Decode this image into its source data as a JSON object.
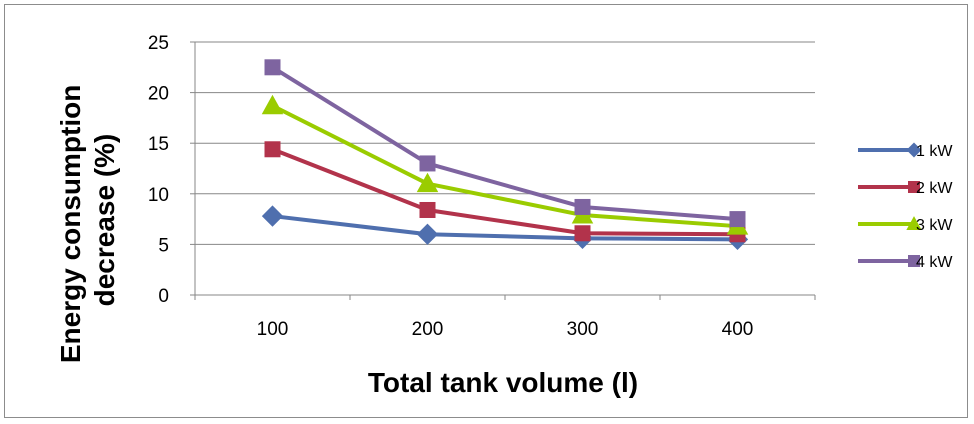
{
  "chart_data": {
    "type": "line",
    "title": "",
    "xlabel": "Total tank volume (l)",
    "ylabel_lines": [
      "Energy consumption",
      "decrease (%)"
    ],
    "categories": [
      "100",
      "200",
      "300",
      "400"
    ],
    "ylim": [
      0,
      25
    ],
    "yticks": [
      "0",
      "5",
      "10",
      "15",
      "20",
      "25"
    ],
    "grid": true,
    "legend_position": "right",
    "series": [
      {
        "name": "1 kW",
        "values": [
          7.8,
          6.0,
          5.6,
          5.5
        ],
        "color": "#4f6fae",
        "marker": "diamond"
      },
      {
        "name": "2 kW",
        "values": [
          14.4,
          8.4,
          6.1,
          6.0
        ],
        "color": "#b2334b",
        "marker": "square"
      },
      {
        "name": "3 kW",
        "values": [
          18.7,
          11.0,
          7.9,
          6.8
        ],
        "color": "#9acc00",
        "marker": "triangle"
      },
      {
        "name": "4 kW",
        "values": [
          22.5,
          13.0,
          8.7,
          7.5
        ],
        "color": "#7e64a0",
        "marker": "square"
      }
    ]
  }
}
